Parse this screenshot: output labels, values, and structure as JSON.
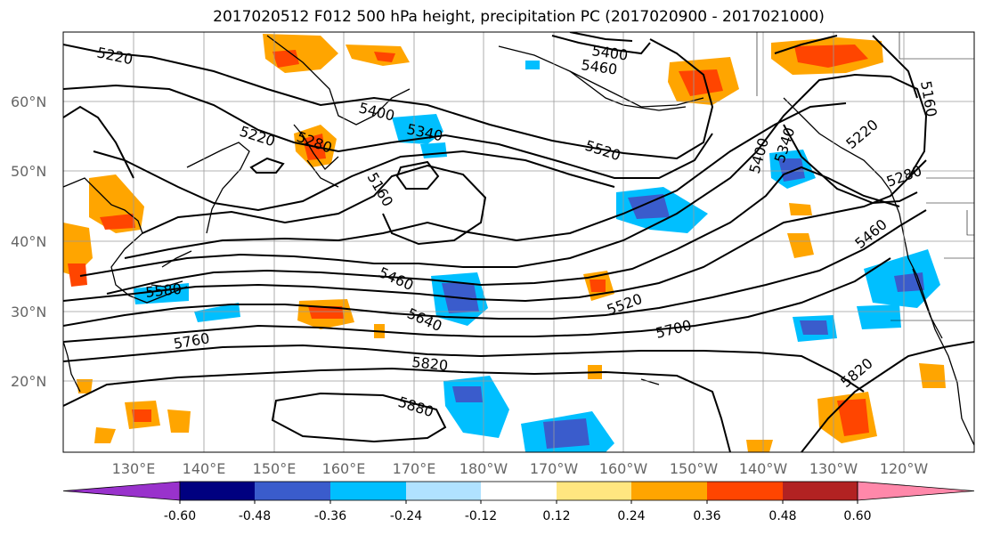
{
  "title": "2017020512 F012 500 hPa height, precipitation PC (2017020900 - 2017021000)",
  "axes": {
    "lat_labels": [
      "60°N",
      "50°N",
      "40°N",
      "30°N",
      "20°N"
    ],
    "lon_labels": [
      "130°E",
      "140°E",
      "150°E",
      "160°E",
      "170°E",
      "180°W",
      "170°W",
      "160°W",
      "150°W",
      "140°W",
      "130°W",
      "120°W"
    ],
    "grid": true
  },
  "colorbar": {
    "tick_labels": [
      "-0.60",
      "-0.48",
      "-0.36",
      "-0.24",
      "-0.12",
      "0.12",
      "0.24",
      "0.36",
      "0.48",
      "0.60"
    ],
    "colors": [
      "#9932cc",
      "#000080",
      "#3a5ccc",
      "#00bfff",
      "#b0e2ff",
      "#ffffff",
      "#ffe680",
      "#ffa500",
      "#ff4500",
      "#b22222",
      "#ff88aa"
    ],
    "extend": "both"
  },
  "contour_labels": [
    "5220",
    "5220",
    "5280",
    "5400",
    "5340",
    "5400",
    "5460",
    "5520",
    "5160",
    "5400",
    "5340",
    "5220",
    "5280",
    "5160",
    "5460",
    "5580",
    "5460",
    "5640",
    "5520",
    "5700",
    "5760",
    "5820",
    "5880",
    "5820"
  ],
  "map_data": {
    "field": "500 hPa geopotential height (m) contours with precipitation PC shading",
    "contour_interval": 60,
    "lon_range": [
      120,
      -110
    ],
    "lat_range": [
      10,
      70
    ]
  }
}
